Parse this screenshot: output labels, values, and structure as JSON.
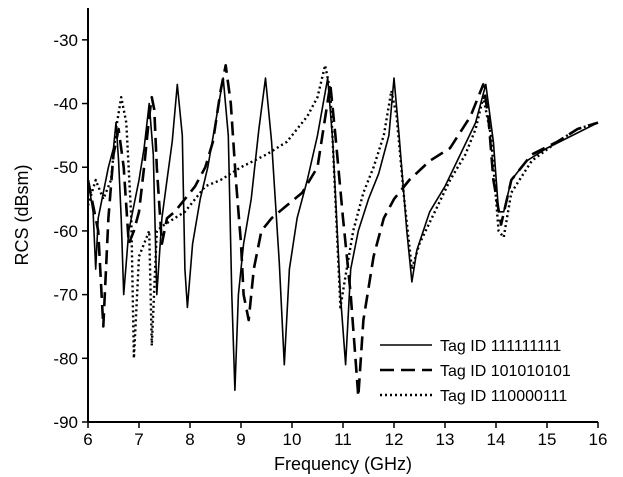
{
  "chart_data": {
    "type": "line",
    "title": "",
    "xlabel": "Frequency (GHz)",
    "ylabel": "RCS (dBsm)",
    "xlim": [
      6,
      16
    ],
    "ylim": [
      -90,
      -25
    ],
    "x_ticks": [
      6,
      7,
      8,
      9,
      10,
      11,
      12,
      13,
      14,
      15,
      16
    ],
    "y_ticks": [
      -90,
      -80,
      -70,
      -60,
      -50,
      -40,
      -30
    ],
    "grid": false,
    "legend_position": "bottom-right",
    "series": [
      {
        "name": "Tag ID 111111111",
        "style": "solid",
        "color": "#000000",
        "points": [
          [
            6.0,
            -52
          ],
          [
            6.1,
            -57
          ],
          [
            6.15,
            -66
          ],
          [
            6.2,
            -58
          ],
          [
            6.3,
            -54
          ],
          [
            6.4,
            -50
          ],
          [
            6.5,
            -47
          ],
          [
            6.55,
            -43
          ],
          [
            6.6,
            -49
          ],
          [
            6.65,
            -58
          ],
          [
            6.7,
            -70
          ],
          [
            6.8,
            -60
          ],
          [
            6.9,
            -56
          ],
          [
            7.0,
            -52
          ],
          [
            7.1,
            -47
          ],
          [
            7.2,
            -40
          ],
          [
            7.28,
            -48
          ],
          [
            7.35,
            -70
          ],
          [
            7.45,
            -58
          ],
          [
            7.55,
            -52
          ],
          [
            7.65,
            -46
          ],
          [
            7.75,
            -37
          ],
          [
            7.85,
            -45
          ],
          [
            7.9,
            -66
          ],
          [
            7.95,
            -72
          ],
          [
            8.05,
            -62
          ],
          [
            8.2,
            -55
          ],
          [
            8.35,
            -50
          ],
          [
            8.5,
            -43
          ],
          [
            8.65,
            -36
          ],
          [
            8.75,
            -45
          ],
          [
            8.82,
            -70
          ],
          [
            8.88,
            -85
          ],
          [
            8.95,
            -70
          ],
          [
            9.05,
            -62
          ],
          [
            9.2,
            -55
          ],
          [
            9.35,
            -44
          ],
          [
            9.48,
            -36
          ],
          [
            9.6,
            -46
          ],
          [
            9.75,
            -65
          ],
          [
            9.85,
            -81
          ],
          [
            9.95,
            -66
          ],
          [
            10.1,
            -58
          ],
          [
            10.3,
            -52
          ],
          [
            10.5,
            -45
          ],
          [
            10.7,
            -36
          ],
          [
            10.8,
            -46
          ],
          [
            10.95,
            -70
          ],
          [
            11.05,
            -81
          ],
          [
            11.15,
            -66
          ],
          [
            11.3,
            -60
          ],
          [
            11.5,
            -55
          ],
          [
            11.7,
            -51
          ],
          [
            11.9,
            -45
          ],
          [
            12.0,
            -36
          ],
          [
            12.1,
            -45
          ],
          [
            12.25,
            -60
          ],
          [
            12.35,
            -68
          ],
          [
            12.45,
            -63
          ],
          [
            12.7,
            -57
          ],
          [
            13.0,
            -53
          ],
          [
            13.3,
            -48
          ],
          [
            13.6,
            -43
          ],
          [
            13.8,
            -37
          ],
          [
            13.95,
            -46
          ],
          [
            14.05,
            -57
          ],
          [
            14.15,
            -57
          ],
          [
            14.3,
            -52
          ],
          [
            14.6,
            -49
          ],
          [
            15.0,
            -47
          ],
          [
            15.5,
            -45
          ],
          [
            16.0,
            -43
          ]
        ]
      },
      {
        "name": "Tag ID 101010101",
        "style": "dashed",
        "color": "#000000",
        "points": [
          [
            6.0,
            -52
          ],
          [
            6.1,
            -56
          ],
          [
            6.2,
            -60
          ],
          [
            6.3,
            -75
          ],
          [
            6.4,
            -58
          ],
          [
            6.5,
            -48
          ],
          [
            6.6,
            -44
          ],
          [
            6.7,
            -50
          ],
          [
            6.8,
            -62
          ],
          [
            6.9,
            -60
          ],
          [
            7.0,
            -57
          ],
          [
            7.1,
            -50
          ],
          [
            7.2,
            -42
          ],
          [
            7.25,
            -39
          ],
          [
            7.3,
            -41
          ],
          [
            7.35,
            -50
          ],
          [
            7.45,
            -62
          ],
          [
            7.55,
            -58
          ],
          [
            7.7,
            -57
          ],
          [
            7.9,
            -55
          ],
          [
            8.1,
            -53
          ],
          [
            8.3,
            -50
          ],
          [
            8.45,
            -46
          ],
          [
            8.6,
            -38
          ],
          [
            8.7,
            -34
          ],
          [
            8.8,
            -40
          ],
          [
            8.9,
            -52
          ],
          [
            9.0,
            -62
          ],
          [
            9.05,
            -70
          ],
          [
            9.15,
            -74
          ],
          [
            9.25,
            -66
          ],
          [
            9.4,
            -60
          ],
          [
            9.6,
            -58
          ],
          [
            9.9,
            -56
          ],
          [
            10.2,
            -54
          ],
          [
            10.5,
            -50
          ],
          [
            10.75,
            -37
          ],
          [
            10.85,
            -45
          ],
          [
            11.0,
            -58
          ],
          [
            11.15,
            -70
          ],
          [
            11.3,
            -86
          ],
          [
            11.4,
            -74
          ],
          [
            11.6,
            -64
          ],
          [
            11.8,
            -58
          ],
          [
            12.0,
            -55
          ],
          [
            12.3,
            -52
          ],
          [
            12.7,
            -49
          ],
          [
            13.1,
            -47
          ],
          [
            13.5,
            -42
          ],
          [
            13.75,
            -37
          ],
          [
            13.85,
            -42
          ],
          [
            13.95,
            -52
          ],
          [
            14.1,
            -59
          ],
          [
            14.3,
            -52
          ],
          [
            14.7,
            -48
          ],
          [
            15.2,
            -46
          ],
          [
            15.6,
            -44
          ],
          [
            16.0,
            -43
          ]
        ]
      },
      {
        "name": "Tag ID 110000111",
        "style": "dotted",
        "color": "#000000",
        "points": [
          [
            6.0,
            -56
          ],
          [
            6.15,
            -52
          ],
          [
            6.3,
            -55
          ],
          [
            6.45,
            -52
          ],
          [
            6.55,
            -44
          ],
          [
            6.65,
            -39
          ],
          [
            6.75,
            -43
          ],
          [
            6.85,
            -58
          ],
          [
            6.9,
            -80
          ],
          [
            7.0,
            -64
          ],
          [
            7.1,
            -62
          ],
          [
            7.2,
            -60
          ],
          [
            7.25,
            -78
          ],
          [
            7.35,
            -60
          ],
          [
            7.5,
            -59
          ],
          [
            7.7,
            -58
          ],
          [
            7.9,
            -57
          ],
          [
            8.1,
            -55
          ],
          [
            8.3,
            -53
          ],
          [
            8.6,
            -52
          ],
          [
            9.0,
            -50
          ],
          [
            9.5,
            -48
          ],
          [
            9.9,
            -46
          ],
          [
            10.1,
            -44
          ],
          [
            10.3,
            -42
          ],
          [
            10.5,
            -39
          ],
          [
            10.65,
            -34
          ],
          [
            10.75,
            -38
          ],
          [
            10.85,
            -55
          ],
          [
            10.95,
            -72
          ],
          [
            11.05,
            -67
          ],
          [
            11.2,
            -60
          ],
          [
            11.4,
            -54
          ],
          [
            11.6,
            -50
          ],
          [
            11.8,
            -45
          ],
          [
            11.95,
            -38
          ],
          [
            12.05,
            -42
          ],
          [
            12.2,
            -55
          ],
          [
            12.35,
            -66
          ],
          [
            12.5,
            -62
          ],
          [
            12.8,
            -57
          ],
          [
            13.1,
            -52
          ],
          [
            13.4,
            -48
          ],
          [
            13.6,
            -44
          ],
          [
            13.75,
            -39
          ],
          [
            13.9,
            -45
          ],
          [
            14.05,
            -60
          ],
          [
            14.15,
            -61
          ],
          [
            14.3,
            -54
          ],
          [
            14.7,
            -49
          ],
          [
            15.2,
            -46
          ],
          [
            15.6,
            -44
          ],
          [
            16.0,
            -43
          ]
        ]
      }
    ]
  }
}
